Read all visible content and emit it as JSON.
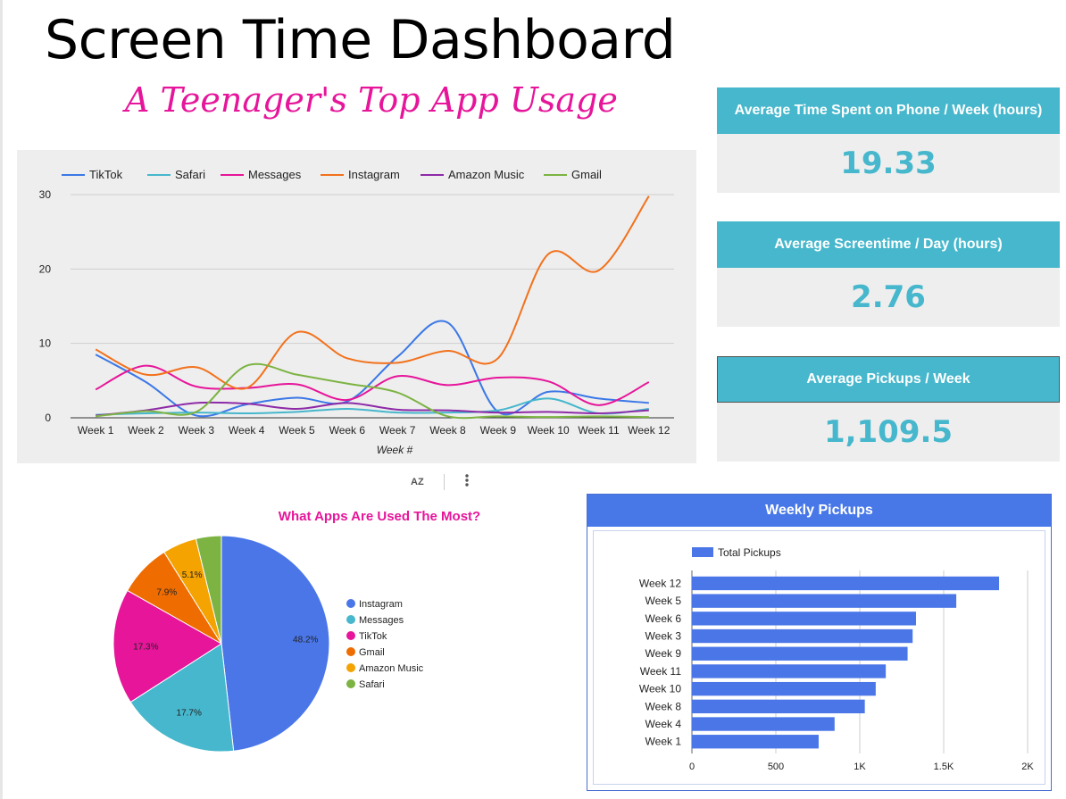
{
  "header": {
    "title": "Screen Time Dashboard",
    "subtitle": "A Teenager's Top App Usage"
  },
  "kpis": [
    {
      "label": "Average Time Spent on Phone / Week (hours)",
      "value": "19.33"
    },
    {
      "label": "Average Screentime / Day (hours)",
      "value": "2.76"
    },
    {
      "label": "Average Pickups / Week",
      "value": "1,109.5"
    }
  ],
  "toolbar": {
    "sort_icon_label": "AZ",
    "more_icon": "more-vert-icon"
  },
  "colors": {
    "TikTok": "#3b78e7",
    "Safari": "#46b7cc",
    "Messages": "#e6159a",
    "Instagram": "#f2711c",
    "Amazon Music": "#8e2aa8",
    "Gmail": "#7cb342",
    "pie_instagram": "#4a76e8",
    "pie_messages": "#46b7cc",
    "pie_tiktok": "#e6159a",
    "pie_gmail": "#ef6c00",
    "pie_amazon": "#f4a300",
    "pie_safari": "#7cb342",
    "bar": "#4a76e8"
  },
  "chart_data": [
    {
      "type": "line",
      "title": "",
      "xlabel": "Week #",
      "ylabel": "",
      "ylim": [
        0,
        30
      ],
      "yticks": [
        0,
        10,
        20,
        30
      ],
      "legend_position": "top",
      "categories": [
        "Week 1",
        "Week 2",
        "Week 3",
        "Week 4",
        "Week 5",
        "Week 6",
        "Week 7",
        "Week 8",
        "Week 9",
        "Week 10",
        "Week 11",
        "Week 12"
      ],
      "series": [
        {
          "name": "TikTok",
          "values": [
            8.5,
            4.8,
            0.3,
            1.8,
            2.7,
            2.2,
            8.2,
            12.8,
            0.8,
            3.5,
            2.6,
            2.0
          ]
        },
        {
          "name": "Safari",
          "values": [
            0.4,
            0.6,
            0.7,
            0.6,
            0.8,
            1.2,
            0.7,
            0.7,
            1.0,
            2.6,
            0.6,
            1.2
          ]
        },
        {
          "name": "Messages",
          "values": [
            3.8,
            7.0,
            4.2,
            4.0,
            4.5,
            2.4,
            5.6,
            4.4,
            5.4,
            4.9,
            1.7,
            4.8
          ]
        },
        {
          "name": "Instagram",
          "values": [
            9.2,
            5.8,
            6.8,
            4.0,
            11.5,
            8.0,
            7.4,
            9.0,
            8.0,
            22.0,
            19.8,
            29.8
          ]
        },
        {
          "name": "Amazon Music",
          "values": [
            0.3,
            1.0,
            2.0,
            1.9,
            1.2,
            2.0,
            1.1,
            1.0,
            0.7,
            0.8,
            0.6,
            1.0
          ]
        },
        {
          "name": "Gmail",
          "values": [
            0.2,
            0.9,
            0.8,
            7.0,
            5.8,
            4.6,
            3.4,
            0.2,
            0.2,
            0.1,
            0.2,
            0.1
          ]
        }
      ]
    },
    {
      "type": "pie",
      "title": "What Apps Are Used The Most?",
      "slices": [
        {
          "name": "Instagram",
          "value": 48.2,
          "label": "48.2%"
        },
        {
          "name": "Messages",
          "value": 17.7,
          "label": "17.7%"
        },
        {
          "name": "TikTok",
          "value": 17.3,
          "label": "17.3%"
        },
        {
          "name": "Gmail",
          "value": 7.9,
          "label": "7.9%"
        },
        {
          "name": "Amazon Music",
          "value": 5.1,
          "label": "5.1%"
        },
        {
          "name": "Safari",
          "value": 3.8,
          "label": ""
        }
      ],
      "legend_position": "right"
    },
    {
      "type": "bar",
      "orientation": "horizontal",
      "title": "Weekly Pickups",
      "series": [
        {
          "name": "Total Pickups"
        }
      ],
      "legend_position": "top",
      "categories": [
        "Week 12",
        "Week 5",
        "Week 6",
        "Week 3",
        "Week 9",
        "Week 11",
        "Week 10",
        "Week 8",
        "Week 4",
        "Week 1"
      ],
      "values": [
        1830,
        1575,
        1335,
        1315,
        1285,
        1155,
        1095,
        1030,
        850,
        755
      ],
      "xlim": [
        0,
        2000
      ],
      "xticks": [
        0,
        500,
        1000,
        1500,
        2000
      ],
      "xtick_labels": [
        "0",
        "500",
        "1K",
        "1.5K",
        "2K"
      ]
    }
  ]
}
